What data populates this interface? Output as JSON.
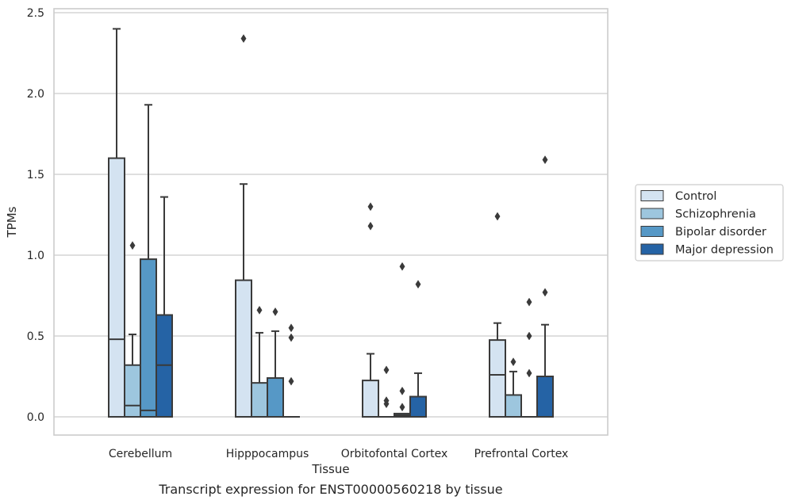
{
  "chart_data": {
    "type": "box",
    "title": "",
    "caption": "Transcript expression for ENST00000560218 by tissue",
    "xlabel": "Tissue",
    "ylabel": "TPMs",
    "ylim": [
      -0.115,
      2.53
    ],
    "yticks": [
      0.0,
      0.5,
      1.0,
      1.5,
      2.0,
      2.5
    ],
    "ytick_labels": [
      "0.0",
      "0.5",
      "1.0",
      "1.5",
      "2.0",
      "2.5"
    ],
    "grid": "horizontal",
    "legend_position": "right",
    "categories": [
      "Cerebellum",
      "Hipppocampus",
      "Orbitofontal Cortex",
      "Prefrontal Cortex"
    ],
    "series": [
      {
        "name": "Control",
        "color": "#d4e3f1",
        "boxes": [
          {
            "q1": 0.0,
            "median": 0.48,
            "q3": 1.6,
            "whisker_low": 0.0,
            "whisker_high": 2.4,
            "outliers": []
          },
          {
            "q1": 0.0,
            "median": 0.0,
            "q3": 0.845,
            "whisker_low": 0.0,
            "whisker_high": 1.44,
            "outliers": [
              2.34
            ]
          },
          {
            "q1": 0.0,
            "median": 0.0,
            "q3": 0.225,
            "whisker_low": 0.0,
            "whisker_high": 0.39,
            "outliers": [
              1.18,
              1.3
            ]
          },
          {
            "q1": 0.0,
            "median": 0.26,
            "q3": 0.475,
            "whisker_low": 0.0,
            "whisker_high": 0.58,
            "outliers": [
              1.24
            ]
          }
        ]
      },
      {
        "name": "Schizophrenia",
        "color": "#9dc6de",
        "boxes": [
          {
            "q1": 0.0,
            "median": 0.07,
            "q3": 0.32,
            "whisker_low": 0.0,
            "whisker_high": 0.51,
            "outliers": [
              1.06
            ]
          },
          {
            "q1": 0.0,
            "median": 0.0,
            "q3": 0.21,
            "whisker_low": 0.0,
            "whisker_high": 0.52,
            "outliers": [
              0.66
            ]
          },
          {
            "q1": 0.0,
            "median": 0.0,
            "q3": 0.0,
            "whisker_low": 0.0,
            "whisker_high": 0.0,
            "outliers": [
              0.08,
              0.1,
              0.29
            ]
          },
          {
            "q1": 0.0,
            "median": 0.0,
            "q3": 0.135,
            "whisker_low": 0.0,
            "whisker_high": 0.28,
            "outliers": [
              0.34
            ]
          }
        ]
      },
      {
        "name": "Bipolar disorder",
        "color": "#5698c6",
        "boxes": [
          {
            "q1": 0.0,
            "median": 0.04,
            "q3": 0.975,
            "whisker_low": 0.0,
            "whisker_high": 1.93,
            "outliers": []
          },
          {
            "q1": 0.0,
            "median": 0.0,
            "q3": 0.24,
            "whisker_low": 0.0,
            "whisker_high": 0.53,
            "outliers": [
              0.65
            ]
          },
          {
            "q1": 0.0,
            "median": 0.01,
            "q3": 0.02,
            "whisker_low": 0.0,
            "whisker_high": 0.02,
            "outliers": [
              0.06,
              0.16,
              0.93
            ]
          },
          {
            "q1": 0.0,
            "median": 0.0,
            "q3": 0.0,
            "whisker_low": 0.0,
            "whisker_high": 0.0,
            "outliers": [
              0.27,
              0.5,
              0.71
            ]
          }
        ]
      },
      {
        "name": "Major depression",
        "color": "#2563a5",
        "boxes": [
          {
            "q1": 0.0,
            "median": 0.32,
            "q3": 0.63,
            "whisker_low": 0.0,
            "whisker_high": 1.36,
            "outliers": []
          },
          {
            "q1": 0.0,
            "median": 0.0,
            "q3": 0.0,
            "whisker_low": 0.0,
            "whisker_high": 0.0,
            "outliers": [
              0.22,
              0.49,
              0.55
            ]
          },
          {
            "q1": 0.0,
            "median": 0.0,
            "q3": 0.125,
            "whisker_low": 0.0,
            "whisker_high": 0.27,
            "outliers": [
              0.82
            ]
          },
          {
            "q1": 0.0,
            "median": 0.0,
            "q3": 0.25,
            "whisker_low": 0.0,
            "whisker_high": 0.57,
            "outliers": [
              0.77,
              1.59
            ]
          }
        ]
      }
    ],
    "colors": {
      "edge": "#3a3a3a",
      "grid": "#cccccc",
      "frame": "#cccccc",
      "text": "#262626"
    }
  }
}
